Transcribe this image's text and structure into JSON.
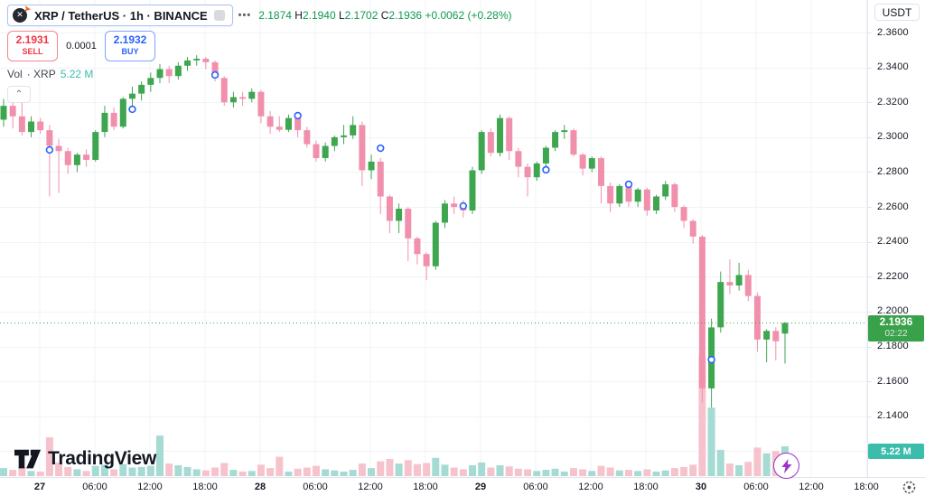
{
  "header": {
    "symbol_title": "XRP / TetherUS · 1h · BINANCE",
    "more_label": "•••",
    "logo_letter": "✕",
    "logo_arrow": "➤",
    "ohlc": {
      "open": "2.1874",
      "high_label": "H",
      "high": "2.1940",
      "low_label": "L",
      "low": "2.1702",
      "close_label": "C",
      "close": "2.1936",
      "change": "+0.0062",
      "change_pct": "(+0.28%)"
    },
    "sell": {
      "price": "2.1931",
      "label": "SELL"
    },
    "spread": "0.0001",
    "buy": {
      "price": "2.1932",
      "label": "BUY"
    },
    "volume_indicator": {
      "label": "Vol",
      "symbol": "· XRP",
      "value": "5.22 M"
    },
    "collapse_glyph": "⌃"
  },
  "axes": {
    "currency_button": "USDT",
    "price_ticks": [
      "2.3600",
      "2.3400",
      "2.3200",
      "2.3000",
      "2.2800",
      "2.2600",
      "2.2400",
      "2.2200",
      "2.2000",
      "2.1800",
      "2.1600",
      "2.1400"
    ],
    "extra_gridline_prices": [
      2.12
    ],
    "time_ticks": [
      {
        "label": "27",
        "bold": true
      },
      {
        "label": "06:00"
      },
      {
        "label": "12:00"
      },
      {
        "label": "18:00"
      },
      {
        "label": "28",
        "bold": true
      },
      {
        "label": "06:00"
      },
      {
        "label": "12:00"
      },
      {
        "label": "18:00"
      },
      {
        "label": "29",
        "bold": true
      },
      {
        "label": "06:00"
      },
      {
        "label": "12:00"
      },
      {
        "label": "18:00"
      },
      {
        "label": "30",
        "bold": true
      },
      {
        "label": "06:00"
      },
      {
        "label": "12:00"
      },
      {
        "label": "18:00"
      }
    ],
    "price_badge": {
      "price": "2.1936",
      "countdown": "02:22"
    },
    "volume_badge": "5.22 M"
  },
  "footer": {
    "logo_text": "TradingView"
  },
  "colors": {
    "up": "#3fa650",
    "down": "#f190ac",
    "vol_up": "#a5dbd3",
    "vol_down": "#f6c3cd",
    "grid": "#f0f3fa",
    "text_green": "#119950",
    "sell_red": "#f23645",
    "buy_blue": "#2962ff",
    "badge_green": "#3aa14b",
    "badge_teal": "#3cbcab",
    "marker_blue": "#2962ff",
    "flash_purple": "#9d34c9",
    "current_price_line": "#3fa650"
  },
  "chart_data": {
    "type": "candlestick+volume",
    "symbol": "XRP/USDT",
    "interval": "1h",
    "exchange": "BINANCE",
    "ohlc_format": [
      "open",
      "high",
      "low",
      "close",
      "volume_M"
    ],
    "current_price": 2.1936,
    "volume_unit": "M",
    "price_axis_range": [
      2.128,
      2.368
    ],
    "candles": [
      [
        2.31,
        2.322,
        2.306,
        2.318,
        1.4
      ],
      [
        2.318,
        2.321,
        2.305,
        2.312,
        1.1
      ],
      [
        2.312,
        2.325,
        2.301,
        2.303,
        1.6
      ],
      [
        2.303,
        2.312,
        2.3,
        2.309,
        0.9
      ],
      [
        2.309,
        2.311,
        2.302,
        2.304,
        0.8
      ],
      [
        2.304,
        2.307,
        2.266,
        2.295,
        6.8
      ],
      [
        2.295,
        2.299,
        2.268,
        2.292,
        2.4
      ],
      [
        2.292,
        2.294,
        2.279,
        2.284,
        1.6
      ],
      [
        2.284,
        2.291,
        2.28,
        2.29,
        1.2
      ],
      [
        2.29,
        2.293,
        2.283,
        2.287,
        0.9
      ],
      [
        2.287,
        2.304,
        2.286,
        2.303,
        1.8
      ],
      [
        2.303,
        2.318,
        2.3,
        2.314,
        2.0
      ],
      [
        2.314,
        2.317,
        2.304,
        2.306,
        1.2
      ],
      [
        2.306,
        2.323,
        2.305,
        2.322,
        2.1
      ],
      [
        2.322,
        2.329,
        2.317,
        2.325,
        1.5
      ],
      [
        2.325,
        2.332,
        2.321,
        2.33,
        1.6
      ],
      [
        2.33,
        2.337,
        2.326,
        2.334,
        1.8
      ],
      [
        2.334,
        2.342,
        2.331,
        2.339,
        7.1
      ],
      [
        2.339,
        2.341,
        2.331,
        2.335,
        2.2
      ],
      [
        2.335,
        2.343,
        2.333,
        2.341,
        1.9
      ],
      [
        2.341,
        2.346,
        2.338,
        2.344,
        1.6
      ],
      [
        2.344,
        2.347,
        2.341,
        2.345,
        1.2
      ],
      [
        2.345,
        2.346,
        2.339,
        2.343,
        1.0
      ],
      [
        2.343,
        2.344,
        2.332,
        2.334,
        1.5
      ],
      [
        2.334,
        2.335,
        2.318,
        2.32,
        2.3
      ],
      [
        2.32,
        2.326,
        2.317,
        2.323,
        1.1
      ],
      [
        2.323,
        2.326,
        2.318,
        2.322,
        0.8
      ],
      [
        2.322,
        2.328,
        2.32,
        2.326,
        0.9
      ],
      [
        2.326,
        2.327,
        2.308,
        2.312,
        2.0
      ],
      [
        2.312,
        2.315,
        2.302,
        2.306,
        1.4
      ],
      [
        2.306,
        2.312,
        2.303,
        2.3042,
        3.4
      ],
      [
        2.3042,
        2.313,
        2.303,
        2.311,
        0.8
      ],
      [
        2.311,
        2.312,
        2.3,
        2.304,
        1.3
      ],
      [
        2.304,
        2.306,
        2.294,
        2.296,
        1.5
      ],
      [
        2.296,
        2.298,
        2.286,
        2.288,
        1.8
      ],
      [
        2.288,
        2.297,
        2.286,
        2.295,
        1.2
      ],
      [
        2.295,
        2.301,
        2.292,
        2.3,
        1.0
      ],
      [
        2.3,
        2.307,
        2.296,
        2.301,
        0.8
      ],
      [
        2.301,
        2.312,
        2.299,
        2.307,
        1.1
      ],
      [
        2.307,
        2.309,
        2.272,
        2.281,
        2.2
      ],
      [
        2.281,
        2.29,
        2.276,
        2.286,
        1.4
      ],
      [
        2.286,
        2.288,
        2.256,
        2.266,
        2.6
      ],
      [
        2.266,
        2.267,
        2.245,
        2.252,
        3.0
      ],
      [
        2.252,
        2.262,
        2.245,
        2.259,
        2.2
      ],
      [
        2.259,
        2.26,
        2.229,
        2.242,
        2.8
      ],
      [
        2.242,
        2.243,
        2.227,
        2.233,
        2.1
      ],
      [
        2.233,
        2.234,
        2.218,
        2.226,
        2.3
      ],
      [
        2.226,
        2.252,
        2.224,
        2.251,
        3.2
      ],
      [
        2.251,
        2.264,
        2.248,
        2.262,
        2.0
      ],
      [
        2.262,
        2.266,
        2.256,
        2.26,
        1.5
      ],
      [
        2.26,
        2.264,
        2.254,
        2.258,
        1.2
      ],
      [
        2.258,
        2.283,
        2.256,
        2.281,
        1.9
      ],
      [
        2.281,
        2.304,
        2.279,
        2.303,
        2.4
      ],
      [
        2.303,
        2.305,
        2.289,
        2.291,
        1.5
      ],
      [
        2.291,
        2.313,
        2.289,
        2.311,
        1.9
      ],
      [
        2.311,
        2.312,
        2.287,
        2.292,
        1.7
      ],
      [
        2.292,
        2.294,
        2.277,
        2.283,
        1.3
      ],
      [
        2.283,
        2.285,
        2.266,
        2.277,
        1.2
      ],
      [
        2.277,
        2.286,
        2.275,
        2.285,
        0.9
      ],
      [
        2.285,
        2.295,
        2.283,
        2.294,
        1.1
      ],
      [
        2.294,
        2.304,
        2.292,
        2.303,
        1.3
      ],
      [
        2.303,
        2.307,
        2.299,
        2.304,
        0.8
      ],
      [
        2.304,
        2.305,
        2.289,
        2.29,
        1.4
      ],
      [
        2.29,
        2.291,
        2.278,
        2.282,
        1.2
      ],
      [
        2.282,
        2.289,
        2.28,
        2.288,
        0.9
      ],
      [
        2.288,
        2.289,
        2.262,
        2.272,
        1.8
      ],
      [
        2.272,
        2.274,
        2.257,
        2.262,
        1.5
      ],
      [
        2.262,
        2.273,
        2.26,
        2.272,
        1.0
      ],
      [
        2.272,
        2.273,
        2.26,
        2.263,
        1.1
      ],
      [
        2.263,
        2.271,
        2.26,
        2.27,
        0.9
      ],
      [
        2.27,
        2.271,
        2.255,
        2.258,
        1.2
      ],
      [
        2.258,
        2.267,
        2.256,
        2.266,
        0.8
      ],
      [
        2.266,
        2.275,
        2.264,
        2.273,
        1.0
      ],
      [
        2.273,
        2.274,
        2.257,
        2.26,
        1.4
      ],
      [
        2.26,
        2.261,
        2.248,
        2.252,
        1.6
      ],
      [
        2.252,
        2.253,
        2.239,
        2.243,
        2.0
      ],
      [
        2.243,
        2.244,
        2.148,
        2.156,
        21.0
      ],
      [
        2.156,
        2.196,
        2.145,
        2.191,
        12.0
      ],
      [
        2.191,
        2.223,
        2.188,
        2.217,
        4.6
      ],
      [
        2.217,
        2.23,
        2.21,
        2.215,
        2.2
      ],
      [
        2.215,
        2.228,
        2.212,
        2.221,
        1.9
      ],
      [
        2.221,
        2.224,
        2.206,
        2.209,
        2.5
      ],
      [
        2.209,
        2.211,
        2.177,
        2.184,
        5.0
      ],
      [
        2.184,
        2.19,
        2.171,
        2.189,
        4.0
      ],
      [
        2.189,
        2.191,
        2.172,
        2.183,
        4.4
      ],
      [
        2.1874,
        2.194,
        2.1702,
        2.1936,
        5.22
      ]
    ],
    "event_markers": [
      [
        5,
        2.2927
      ],
      [
        14,
        2.316
      ],
      [
        23,
        2.3357
      ],
      [
        32,
        2.3124
      ],
      [
        41,
        2.2937
      ],
      [
        50,
        2.2606
      ],
      [
        59,
        2.2813
      ],
      [
        68,
        2.273
      ],
      [
        77,
        2.1725
      ]
    ]
  }
}
